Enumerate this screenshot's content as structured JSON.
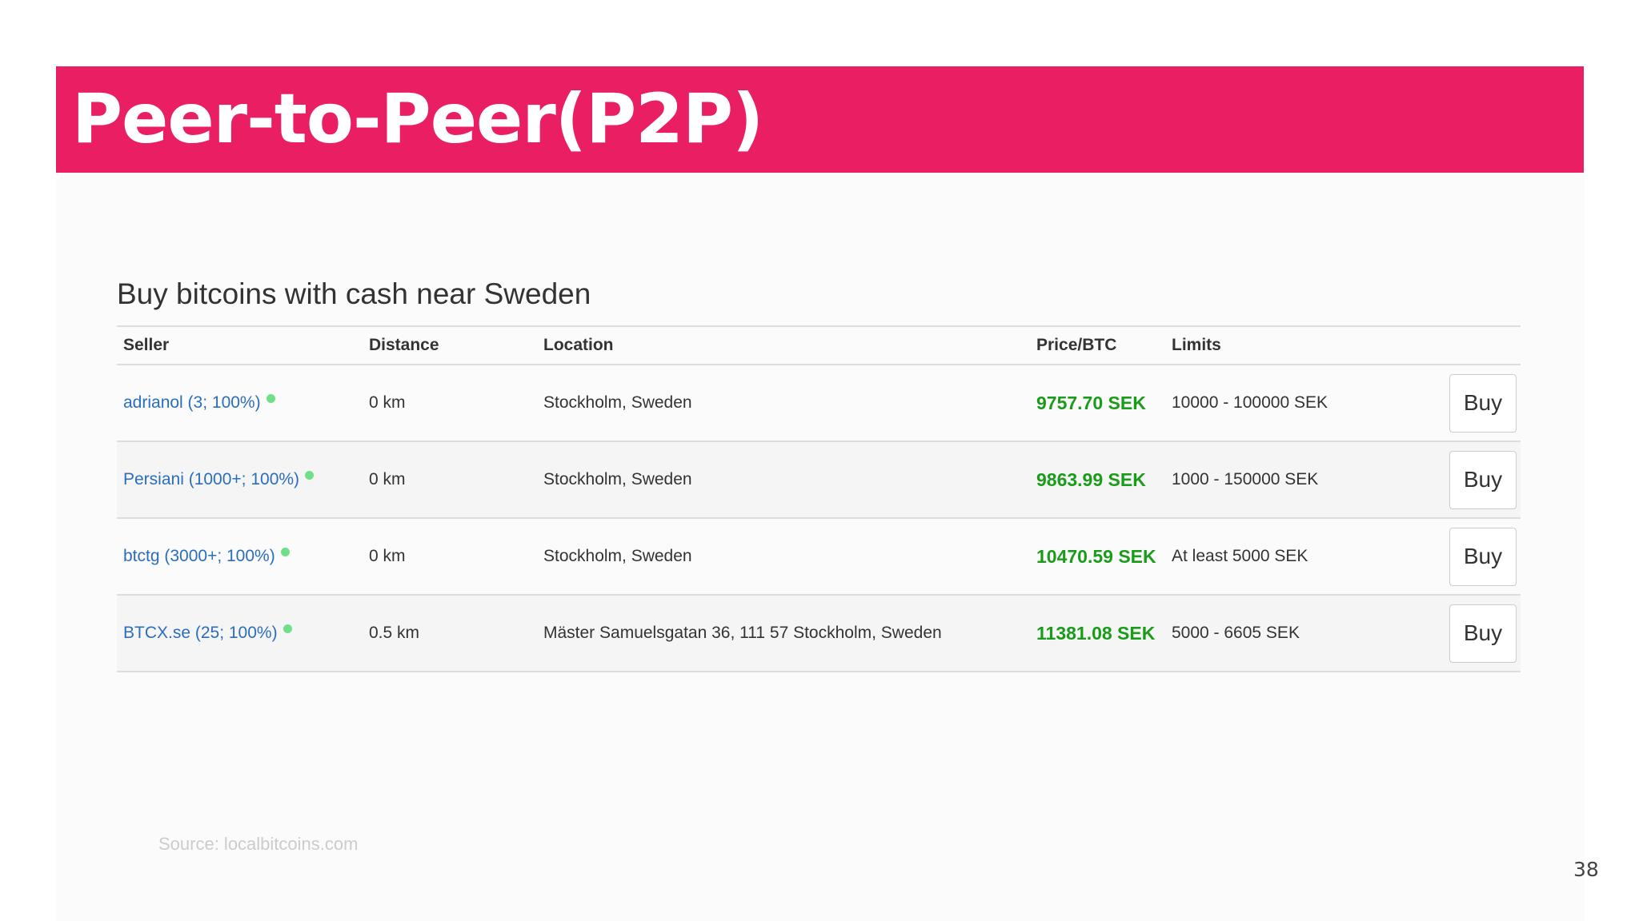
{
  "slide": {
    "title": "Peer-to-Peer(P2P)",
    "source": "Source: localbitcoins.com",
    "page_number": "38",
    "accent_color": "#e91e63"
  },
  "screenshot": {
    "heading": "Buy bitcoins with cash near Sweden",
    "columns": [
      "Seller",
      "Distance",
      "Location",
      "Price/BTC",
      "Limits",
      ""
    ],
    "rows": [
      {
        "seller": "adrianol (3; 100%)",
        "distance": "0 km",
        "location": "Stockholm, Sweden",
        "price": "9757.70 SEK",
        "limits": "10000 - 100000 SEK",
        "action": "Buy"
      },
      {
        "seller": "Persiani (1000+; 100%)",
        "distance": "0 km",
        "location": "Stockholm, Sweden",
        "price": "9863.99 SEK",
        "limits": "1000 - 150000 SEK",
        "action": "Buy"
      },
      {
        "seller": "btctg (3000+; 100%)",
        "distance": "0 km",
        "location": "Stockholm, Sweden",
        "price": "10470.59 SEK",
        "limits": "At least 5000 SEK",
        "action": "Buy"
      },
      {
        "seller": "BTCX.se (25; 100%)",
        "distance": "0.5 km",
        "location": "Mäster Samuelsgatan 36, 111 57 Stockholm, Sweden",
        "price": "11381.08 SEK",
        "limits": "5000 - 6605 SEK",
        "action": "Buy"
      }
    ]
  }
}
